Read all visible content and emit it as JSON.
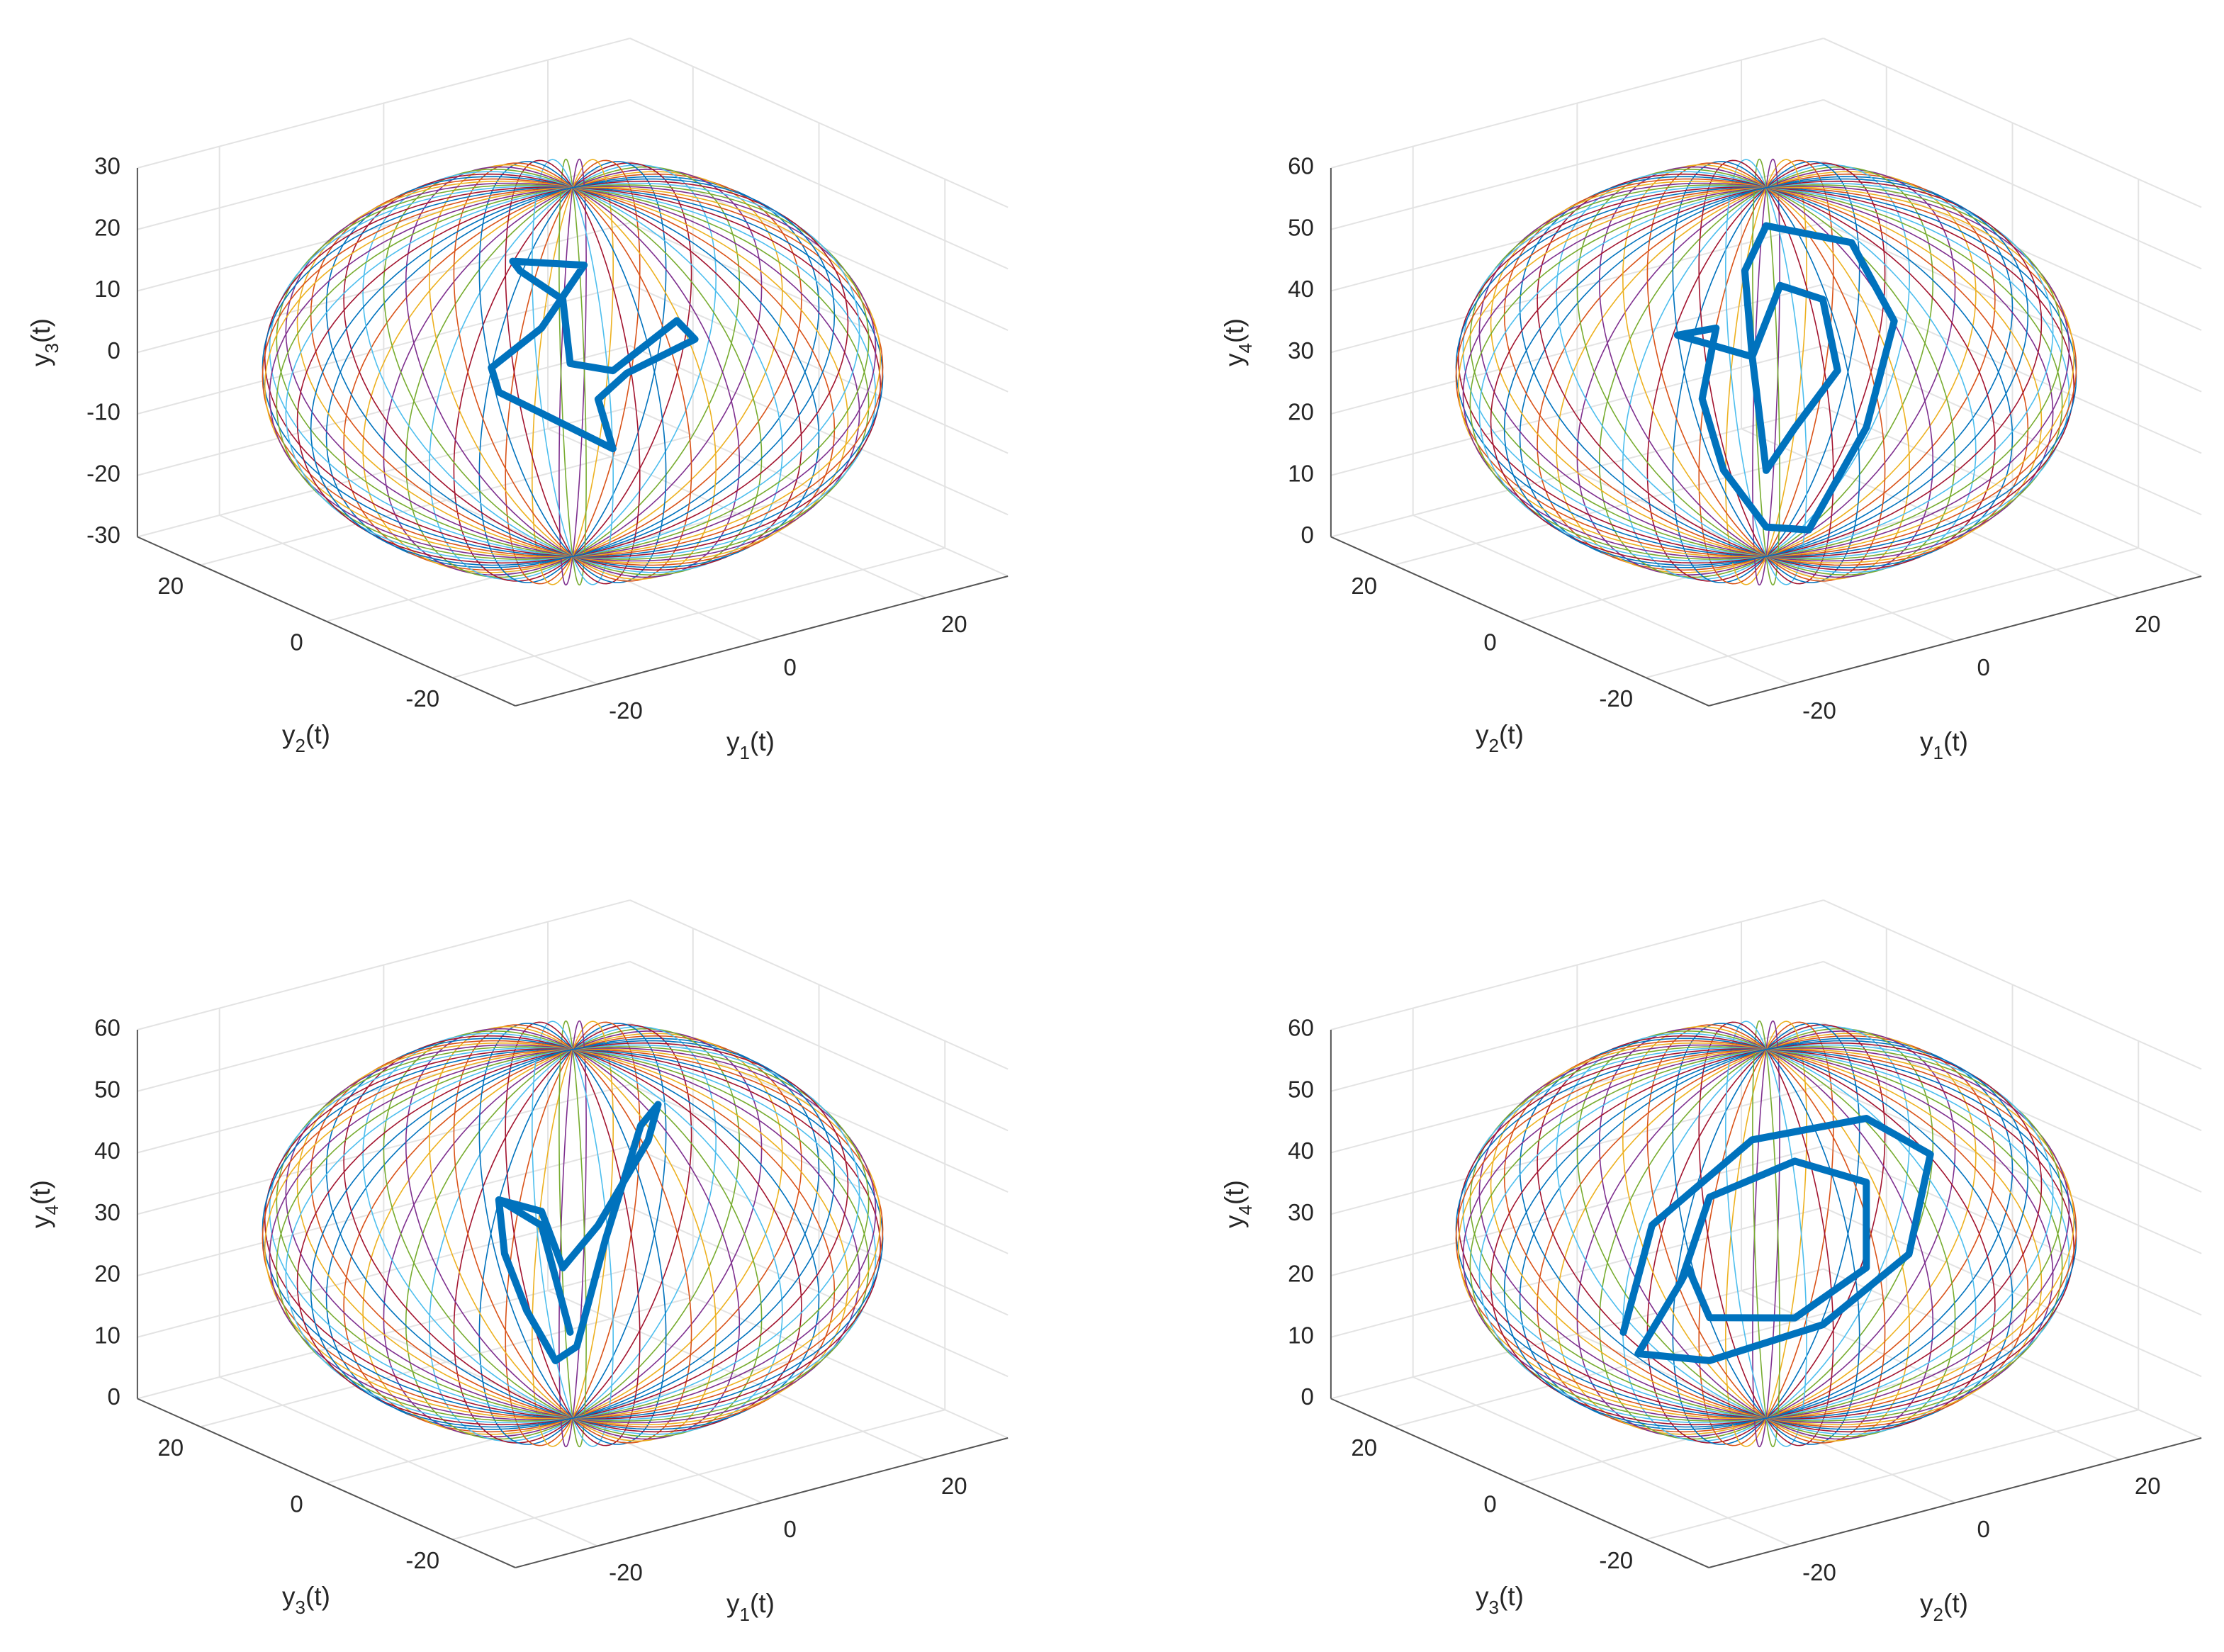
{
  "chart_data": [
    {
      "type": "line3d",
      "xlabel": "y1(t)",
      "ylabel": "y2(t)",
      "zlabel": "y3(t)",
      "xlim": [
        -30,
        30
      ],
      "ylim": [
        -30,
        30
      ],
      "zlim": [
        -30,
        30
      ],
      "xticks": [
        -20,
        0,
        20
      ],
      "yticks": [
        -20,
        0,
        20
      ],
      "zticks": [
        -30,
        -20,
        -10,
        0,
        10,
        20,
        30
      ],
      "view": [
        -37.5,
        30
      ],
      "grid": true,
      "surface": {
        "type": "sphere",
        "center": [
          0,
          0,
          0
        ],
        "radii": [
          30,
          30,
          30
        ],
        "colors": [
          "#0072bd",
          "#d95319",
          "#edb120",
          "#7e2f8e",
          "#77ac30",
          "#4dbeee",
          "#a2142f"
        ]
      },
      "series": [
        {
          "color": "#0072bd",
          "x": [
            -7.3,
            1.4,
            -3.8,
            -9.9,
            -9.0,
            -0.3,
            4.9,
            3.1,
            6.6,
            14.9,
            12.7,
            4.9,
            -0.3,
            -1.2,
            -6.4,
            -7.3
          ],
          "y": [
            0,
            0,
            0,
            0,
            0,
            0,
            0,
            0,
            0,
            0,
            0,
            0,
            0,
            0,
            0,
            0
          ],
          "z": [
            20.6,
            16.9,
            8.5,
            4.2,
            -0.1,
            -8.9,
            -14.2,
            -5.5,
            -2.5,
            0.1,
            3.9,
            -1.5,
            1.5,
            12.2,
            18.7,
            20.6
          ]
        }
      ]
    },
    {
      "type": "line3d",
      "xlabel": "y1(t)",
      "ylabel": "y2(t)",
      "zlabel": "y4(t)",
      "xlim": [
        -30,
        30
      ],
      "ylim": [
        -30,
        30
      ],
      "zlim": [
        0,
        60
      ],
      "xticks": [
        -20,
        0,
        20
      ],
      "yticks": [
        -20,
        0,
        20
      ],
      "zticks": [
        0,
        10,
        20,
        30,
        40,
        50,
        60
      ],
      "view": [
        -37.5,
        30
      ],
      "grid": true,
      "surface": {
        "type": "sphere",
        "center": [
          0,
          0,
          30
        ],
        "radii": [
          30,
          30,
          30
        ],
        "colors": [
          "#0072bd",
          "#d95319",
          "#edb120",
          "#7e2f8e",
          "#77ac30",
          "#4dbeee",
          "#a2142f"
        ]
      },
      "series": [
        {
          "color": "#0072bd",
          "x": [
            0,
            10.4,
            15.6,
            12.2,
            5.2,
            0,
            -5.2,
            -7.8,
            -6.1,
            -10.8,
            -1.7,
            1.7,
            6.9,
            8.7,
            3.5,
            0,
            -1.7,
            -2.6,
            0
          ],
          "y": [
            0,
            0,
            0,
            0,
            0,
            0,
            0,
            0,
            0,
            0,
            0,
            0,
            0,
            0,
            0,
            0,
            0,
            0,
            0
          ],
          "z": [
            53.8,
            47.4,
            32.8,
            16.7,
            2.5,
            4.8,
            15.9,
            28.4,
            39.3,
            39.8,
            33.1,
            43.5,
            39.4,
            27.2,
            19.7,
            14.0,
            33.1,
            47.4,
            53.8
          ]
        }
      ]
    },
    {
      "type": "line3d",
      "xlabel": "y1(t)",
      "ylabel": "y3(t)",
      "zlabel": "y4(t)",
      "xlim": [
        -30,
        30
      ],
      "ylim": [
        -30,
        30
      ],
      "zlim": [
        0,
        60
      ],
      "xticks": [
        -20,
        0,
        20
      ],
      "yticks": [
        -20,
        0,
        20
      ],
      "zticks": [
        0,
        10,
        20,
        30,
        40,
        50,
        60
      ],
      "view": [
        -37.5,
        30
      ],
      "grid": true,
      "surface": {
        "type": "sphere",
        "center": [
          0,
          0,
          30
        ],
        "radii": [
          30,
          30,
          30
        ],
        "colors": [
          "#0072bd",
          "#d95319",
          "#edb120",
          "#7e2f8e",
          "#77ac30",
          "#4dbeee",
          "#a2142f"
        ]
      },
      "series": [
        {
          "color": "#0072bd",
          "x": [
            -9.0,
            -3.8,
            -1.2,
            3.1,
            9.2,
            10.4,
            8.3,
            4.0,
            0.5,
            -2.1,
            -5.6,
            -8.3,
            -9.0,
            -3.8,
            -0.3
          ],
          "y": [
            0,
            0,
            0,
            0,
            0,
            0,
            0,
            0,
            0,
            0,
            0,
            0,
            0,
            0,
            0
          ],
          "z": [
            38.7,
            35.0,
            24.9,
            30.3,
            42.0,
            47.4,
            44.7,
            27.7,
            11.5,
            10.1,
            19.5,
            29.7,
            38.7,
            32.7,
            14.1
          ]
        }
      ]
    },
    {
      "type": "line3d",
      "xlabel": "y2(t)",
      "ylabel": "y3(t)",
      "zlabel": "y4(t)",
      "xlim": [
        -30,
        30
      ],
      "ylim": [
        -30,
        30
      ],
      "zlim": [
        0,
        60
      ],
      "xticks": [
        -20,
        0,
        20
      ],
      "yticks": [
        -20,
        0,
        20
      ],
      "zticks": [
        0,
        10,
        20,
        30,
        40,
        50,
        60
      ],
      "view": [
        -37.5,
        30
      ],
      "grid": true,
      "surface": {
        "type": "sphere",
        "center": [
          0,
          0,
          30
        ],
        "radii": [
          30,
          30,
          30
        ],
        "colors": [
          "#0072bd",
          "#d95319",
          "#edb120",
          "#7e2f8e",
          "#77ac30",
          "#4dbeee",
          "#a2142f"
        ]
      },
      "series": [
        {
          "color": "#0072bd",
          "x": [
            -17.4,
            -13.9,
            -1.7,
            12.2,
            20.0,
            17.4,
            6.9,
            -6.9,
            -15.6,
            -10.4,
            -6.9,
            3.5,
            12.2,
            12.2,
            3.5,
            -6.9,
            -9.5,
            -10.4
          ],
          "y": [
            0,
            0,
            0,
            0,
            0,
            0,
            0,
            0,
            0,
            0,
            0,
            0,
            0,
            0,
            0,
            0,
            0,
            0
          ],
          "z": [
            20.1,
            36.3,
            45.9,
            44.5,
            35.9,
            20.6,
            12.8,
            11.8,
            16.0,
            25.8,
            38.4,
            40.6,
            34.1,
            20.2,
            15.1,
            18.8,
            27.8,
            25.8
          ]
        }
      ]
    }
  ]
}
